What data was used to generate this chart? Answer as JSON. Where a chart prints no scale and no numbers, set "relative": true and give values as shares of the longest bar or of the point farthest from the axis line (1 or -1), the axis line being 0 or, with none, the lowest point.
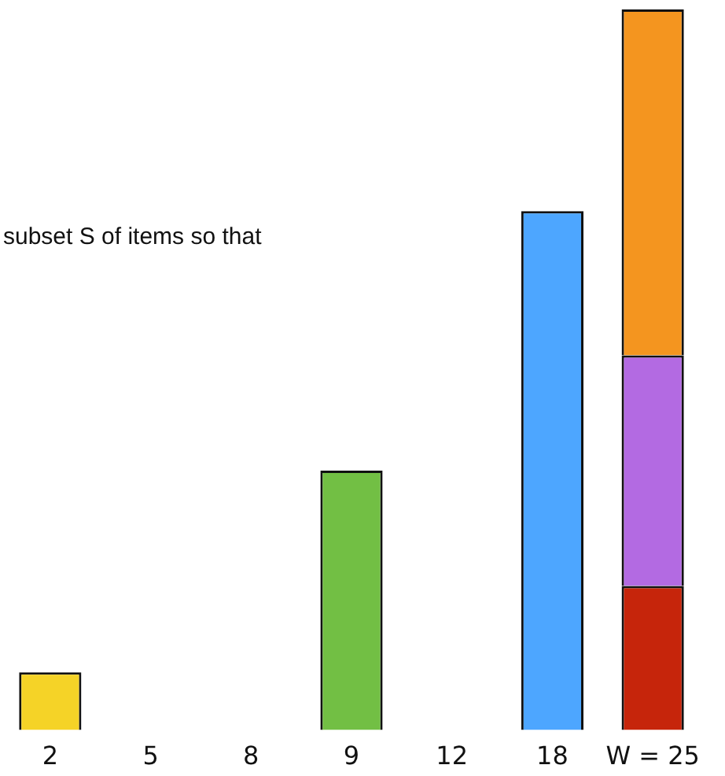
{
  "chart_data": {
    "type": "bar",
    "relative": true,
    "stacked": true,
    "legend": false,
    "grid": false,
    "categories": [
      "2",
      "5",
      "8",
      "9",
      "12",
      "18",
      "W = 25"
    ],
    "annotations": [
      "subset S of items so that"
    ],
    "series": [
      {
        "color": "#f5d327",
        "values": [
          0.08,
          null,
          null,
          null,
          null,
          null,
          null
        ]
      },
      {
        "color": "#72bf44",
        "values": [
          null,
          null,
          null,
          0.36,
          null,
          null,
          null
        ]
      },
      {
        "color": "#4da6ff",
        "values": [
          null,
          null,
          null,
          null,
          null,
          0.72,
          null
        ]
      },
      {
        "color": "#c6250b",
        "values": [
          null,
          null,
          null,
          null,
          null,
          null,
          0.2
        ]
      },
      {
        "color": "#b36ae2",
        "values": [
          null,
          null,
          null,
          null,
          null,
          null,
          0.32
        ]
      },
      {
        "color": "#f4951f",
        "values": [
          null,
          null,
          null,
          null,
          null,
          null,
          0.48
        ]
      }
    ]
  }
}
